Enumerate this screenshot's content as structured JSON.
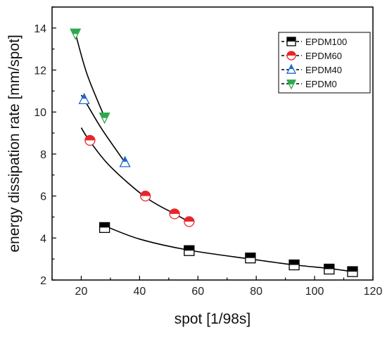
{
  "chart_data": {
    "type": "scatter",
    "xlabel": "spot [1/98s]",
    "ylabel": "energy dissipation rate [mm/spot]",
    "xlim": [
      10,
      120
    ],
    "ylim": [
      2,
      15
    ],
    "xticks": [
      20,
      40,
      60,
      80,
      100,
      120
    ],
    "yticks": [
      2,
      4,
      6,
      8,
      10,
      12,
      14
    ],
    "grid": false,
    "legend_position": "top-right",
    "series": [
      {
        "name": "EPDM100",
        "marker": "square",
        "color": "#000000",
        "points": [
          [
            28,
            4.5
          ],
          [
            57,
            3.4
          ],
          [
            78,
            3.05
          ],
          [
            93,
            2.72
          ],
          [
            105,
            2.52
          ],
          [
            113,
            2.4
          ]
        ],
        "fit": [
          [
            28,
            4.58
          ],
          [
            40,
            3.95
          ],
          [
            57,
            3.42
          ],
          [
            78,
            3.0
          ],
          [
            93,
            2.72
          ],
          [
            105,
            2.55
          ],
          [
            113,
            2.4
          ]
        ]
      },
      {
        "name": "EPDM60",
        "marker": "circle",
        "color": "#e8262a",
        "points": [
          [
            23,
            8.65
          ],
          [
            42,
            6.0
          ],
          [
            52,
            5.15
          ],
          [
            57,
            4.78
          ]
        ],
        "fit": [
          [
            20,
            9.25
          ],
          [
            23,
            8.6
          ],
          [
            30,
            7.4
          ],
          [
            42,
            5.95
          ],
          [
            52,
            5.15
          ],
          [
            57,
            4.78
          ]
        ]
      },
      {
        "name": "EPDM40",
        "marker": "triangle-up",
        "color": "#2068d0",
        "points": [
          [
            21,
            10.6
          ],
          [
            35,
            7.6
          ]
        ],
        "fit": [
          [
            20,
            10.8
          ],
          [
            21,
            10.6
          ],
          [
            27,
            9.2
          ],
          [
            35,
            7.6
          ]
        ]
      },
      {
        "name": "EPDM0",
        "marker": "triangle-down",
        "color": "#2ea84e",
        "points": [
          [
            18,
            13.75
          ],
          [
            28,
            9.75
          ]
        ],
        "fit": [
          [
            18,
            13.75
          ],
          [
            22,
            11.8
          ],
          [
            28,
            9.75
          ]
        ]
      }
    ]
  }
}
